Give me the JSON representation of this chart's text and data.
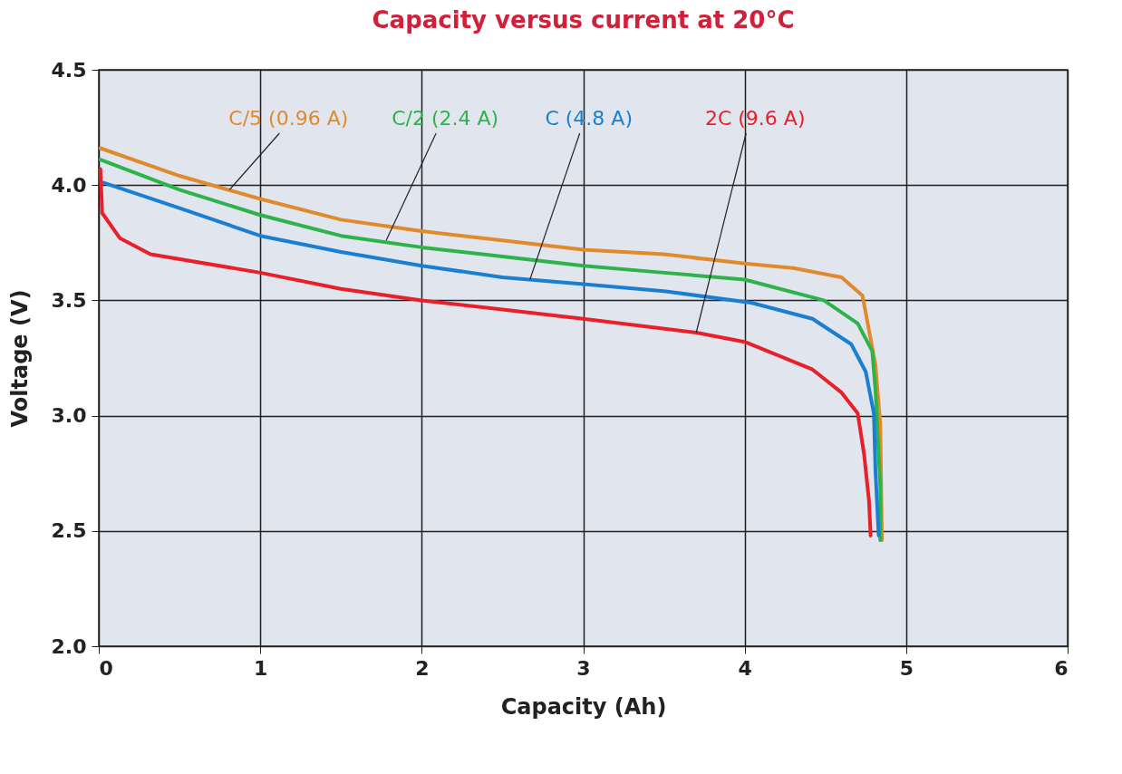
{
  "chart_data": {
    "type": "line",
    "title": "Capacity versus current at 20°C",
    "xlabel": "Capacity (Ah)",
    "ylabel": "Voltage (V)",
    "xlim": [
      0,
      6
    ],
    "xticks": [
      0,
      1,
      2,
      3,
      4,
      5,
      6
    ],
    "ylim": [
      2.0,
      4.5
    ],
    "yticks": [
      {
        "value": 2.0,
        "label": "2.0"
      },
      {
        "value": 2.5,
        "label": "2.5"
      },
      {
        "value": 3.0,
        "label": "3.0"
      },
      {
        "value": 3.5,
        "label": "3.5"
      },
      {
        "value": 4.0,
        "label": "4.0"
      },
      {
        "value": 4.5,
        "label": "4.5"
      }
    ],
    "grid": true,
    "line_style": "solid",
    "marker": "none",
    "series": [
      {
        "color": "#e08a2e",
        "x": [
          0.01,
          0.5,
          1,
          1.5,
          2,
          2.5,
          3,
          3.5,
          4,
          4.3,
          4.6,
          4.73,
          4.81,
          4.84,
          4.85
        ],
        "values": [
          4.16,
          4.04,
          3.94,
          3.85,
          3.8,
          3.76,
          3.72,
          3.7,
          3.66,
          3.64,
          3.6,
          3.52,
          3.22,
          2.96,
          2.46
        ]
      },
      {
        "color": "#2db34a",
        "x": [
          0.01,
          0.5,
          1,
          1.5,
          2,
          2.5,
          3,
          3.5,
          4,
          4.49,
          4.7,
          4.79,
          4.81,
          4.84,
          4.84
        ],
        "values": [
          4.11,
          3.98,
          3.87,
          3.78,
          3.73,
          3.69,
          3.65,
          3.62,
          3.59,
          3.5,
          3.4,
          3.28,
          3.11,
          2.69,
          2.46
        ]
      },
      {
        "color": "#1a7fd0",
        "x": [
          0.03,
          0.5,
          1,
          1.5,
          2,
          2.5,
          3,
          3.5,
          4.04,
          4.42,
          4.66,
          4.75,
          4.8,
          4.81,
          4.83
        ],
        "values": [
          4.01,
          3.9,
          3.78,
          3.71,
          3.65,
          3.6,
          3.57,
          3.54,
          3.49,
          3.42,
          3.31,
          3.19,
          3.01,
          2.76,
          2.48
        ]
      },
      {
        "color": "#e8202a",
        "x": [
          0.01,
          0.02,
          0.02,
          0.13,
          0.32,
          1,
          1.5,
          2,
          2.5,
          3,
          3.7,
          4,
          4.42,
          4.6,
          4.7,
          4.74,
          4.77,
          4.78
        ],
        "values": [
          4.07,
          3.9,
          3.88,
          3.77,
          3.7,
          3.62,
          3.55,
          3.5,
          3.46,
          3.42,
          3.36,
          3.32,
          3.2,
          3.1,
          3.01,
          2.83,
          2.63,
          2.48
        ]
      }
    ],
    "annotations": [
      {
        "text": "C/5 (0.96 A)",
        "x": 0.81,
        "y": 3.98
      },
      {
        "text": "C/2 (2.4 A)",
        "x": 1.78,
        "y": 3.76
      },
      {
        "text": "C (4.8 A)",
        "x": 2.67,
        "y": 3.59
      },
      {
        "text": "2C (9.6 A)",
        "x": 3.7,
        "y": 3.36
      }
    ]
  }
}
